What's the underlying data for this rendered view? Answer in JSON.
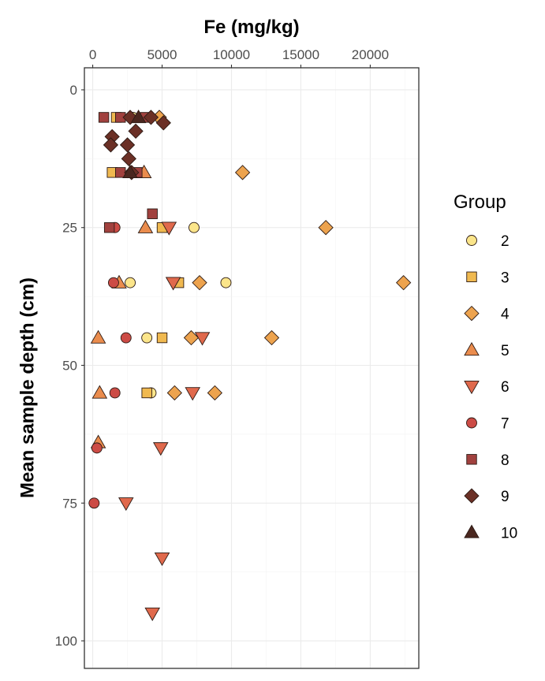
{
  "chart_data": {
    "type": "scatter",
    "xlabel": "Fe (mg/kg)",
    "ylabel": "Mean sample depth (cm)",
    "x_axis_position": "top",
    "y_reversed": true,
    "xlim": [
      -600,
      23500
    ],
    "ylim": [
      -4,
      105
    ],
    "x_ticks": [
      0,
      5000,
      10000,
      15000,
      20000
    ],
    "y_ticks": [
      0,
      25,
      50,
      75,
      100
    ],
    "grid": true,
    "legend": {
      "title": "Group",
      "position": "right"
    },
    "series": [
      {
        "name": "2",
        "shape": "circle",
        "color": "#fbe58a",
        "points": [
          {
            "x": 2900,
            "y": 5
          },
          {
            "x": 7300,
            "y": 25
          },
          {
            "x": 2700,
            "y": 35
          },
          {
            "x": 9600,
            "y": 35
          },
          {
            "x": 3900,
            "y": 45
          },
          {
            "x": 4200,
            "y": 55
          }
        ]
      },
      {
        "name": "3",
        "shape": "square",
        "color": "#f0b950",
        "points": [
          {
            "x": 1700,
            "y": 5
          },
          {
            "x": 1400,
            "y": 15
          },
          {
            "x": 5000,
            "y": 25
          },
          {
            "x": 6200,
            "y": 35
          },
          {
            "x": 5000,
            "y": 45
          },
          {
            "x": 3900,
            "y": 55
          }
        ]
      },
      {
        "name": "4",
        "shape": "diamond",
        "color": "#eda34e",
        "points": [
          {
            "x": 4800,
            "y": 5
          },
          {
            "x": 10800,
            "y": 15
          },
          {
            "x": 16800,
            "y": 25
          },
          {
            "x": 7700,
            "y": 35
          },
          {
            "x": 22400,
            "y": 35
          },
          {
            "x": 7100,
            "y": 45
          },
          {
            "x": 12900,
            "y": 45
          },
          {
            "x": 5900,
            "y": 55
          },
          {
            "x": 8800,
            "y": 55
          }
        ]
      },
      {
        "name": "5",
        "shape": "triangle-up",
        "color": "#ea8c4d",
        "points": [
          {
            "x": 3700,
            "y": 15
          },
          {
            "x": 3800,
            "y": 25
          },
          {
            "x": 1900,
            "y": 35
          },
          {
            "x": 400,
            "y": 45
          },
          {
            "x": 500,
            "y": 55
          },
          {
            "x": 400,
            "y": 64
          }
        ]
      },
      {
        "name": "6",
        "shape": "triangle-down",
        "color": "#e0694c",
        "points": [
          {
            "x": 5500,
            "y": 25
          },
          {
            "x": 5800,
            "y": 35
          },
          {
            "x": 7900,
            "y": 45
          },
          {
            "x": 7200,
            "y": 55
          },
          {
            "x": 4900,
            "y": 65
          },
          {
            "x": 2400,
            "y": 75
          },
          {
            "x": 5000,
            "y": 85
          },
          {
            "x": 4300,
            "y": 95
          }
        ]
      },
      {
        "name": "7",
        "shape": "circle",
        "color": "#cc4b45",
        "points": [
          {
            "x": 1600,
            "y": 25
          },
          {
            "x": 1500,
            "y": 35
          },
          {
            "x": 2400,
            "y": 45
          },
          {
            "x": 1600,
            "y": 55
          },
          {
            "x": 300,
            "y": 65
          },
          {
            "x": 100,
            "y": 75
          }
        ]
      },
      {
        "name": "8",
        "shape": "square",
        "color": "#a1413e",
        "points": [
          {
            "x": 800,
            "y": 5
          },
          {
            "x": 2000,
            "y": 5
          },
          {
            "x": 3800,
            "y": 5
          },
          {
            "x": 2000,
            "y": 15
          },
          {
            "x": 3200,
            "y": 15
          },
          {
            "x": 4300,
            "y": 22.5
          },
          {
            "x": 1200,
            "y": 25
          }
        ]
      },
      {
        "name": "9",
        "shape": "diamond",
        "color": "#6b3026",
        "points": [
          {
            "x": 2700,
            "y": 5
          },
          {
            "x": 4200,
            "y": 5
          },
          {
            "x": 5100,
            "y": 6
          },
          {
            "x": 3100,
            "y": 7.5
          },
          {
            "x": 1400,
            "y": 8.5
          },
          {
            "x": 1300,
            "y": 10
          },
          {
            "x": 2500,
            "y": 10
          },
          {
            "x": 2600,
            "y": 12.5
          },
          {
            "x": 2800,
            "y": 15
          }
        ]
      },
      {
        "name": "10",
        "shape": "triangle-up",
        "color": "#4a271f",
        "points": [
          {
            "x": 3300,
            "y": 5
          },
          {
            "x": 2700,
            "y": 15
          }
        ]
      }
    ]
  }
}
